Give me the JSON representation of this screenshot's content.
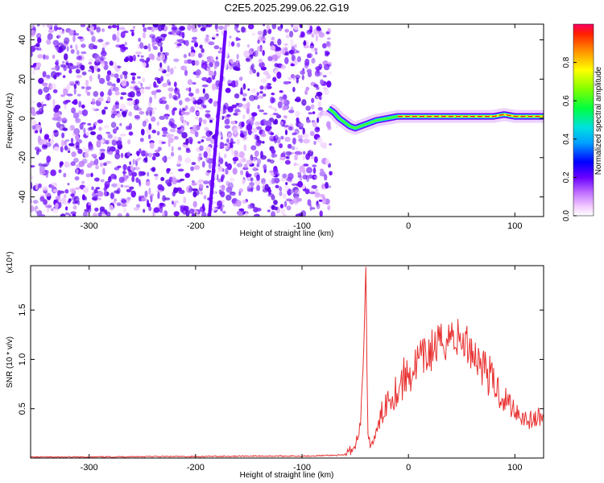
{
  "title": "C2E5.2025.299.06.22.G19",
  "colors": {
    "snr_line": "#e83030",
    "doppler_track": "#6a00ff",
    "background": "#ffffff"
  },
  "chart_data": [
    {
      "type": "heatmap",
      "xlabel": "Height of straight line (km)",
      "ylabel": "Frequency (Hz)",
      "xlim": [
        -355,
        127
      ],
      "ylim": [
        -50,
        48
      ],
      "xticks": [
        -300,
        -200,
        -100,
        0,
        100
      ],
      "yticks": [
        -40,
        -20,
        0,
        20,
        40
      ],
      "noise_region_x": [
        -355,
        -73
      ],
      "colorbar": {
        "label": "Normalized spectral amplitude",
        "range": [
          0,
          1
        ],
        "ticks": [
          "0.0",
          "0.2",
          "0.4",
          "0.6",
          "0.8"
        ]
      },
      "doppler_trace": {
        "x": [
          -75,
          -70,
          -65,
          -60,
          -55,
          -50,
          -45,
          -40,
          -35,
          -30,
          -20,
          -10,
          0,
          10,
          20,
          40,
          60,
          80,
          90,
          100,
          127
        ],
        "y": [
          5,
          3,
          0,
          -2,
          -4,
          -5,
          -4,
          -3,
          -2,
          -1,
          0,
          1,
          1,
          1,
          1,
          1,
          1,
          1,
          2,
          1,
          1
        ]
      }
    },
    {
      "type": "line",
      "xlabel": "Height of straight line (km)",
      "ylabel": "SNR (10 * v/v)",
      "y_multiplier": "(x10⁴)",
      "xlim": [
        -355,
        127
      ],
      "ylim": [
        0,
        1.95
      ],
      "xticks": [
        -300,
        -200,
        -100,
        0,
        100
      ],
      "yticks": [
        "0.5",
        "1.0",
        "1.5"
      ],
      "series": [
        {
          "x": [
            -355,
            -300,
            -250,
            -200,
            -150,
            -100,
            -60,
            -50,
            -45,
            -42,
            -40,
            -39,
            -38,
            -36,
            -34,
            -30,
            -25,
            -20,
            -15,
            -10,
            -5,
            0,
            5,
            10,
            15,
            20,
            25,
            30,
            35,
            40,
            45,
            50,
            55,
            60,
            65,
            70,
            75,
            80,
            85,
            90,
            95,
            100,
            105,
            110,
            115,
            120,
            127
          ],
          "y": [
            0.01,
            0.01,
            0.015,
            0.015,
            0.02,
            0.02,
            0.03,
            0.12,
            0.35,
            1.1,
            1.95,
            0.9,
            0.2,
            0.15,
            0.15,
            0.25,
            0.45,
            0.6,
            0.65,
            0.7,
            0.8,
            0.85,
            0.9,
            1.0,
            1.0,
            1.08,
            1.12,
            1.15,
            1.2,
            1.25,
            1.22,
            1.18,
            1.15,
            1.1,
            1.0,
            0.95,
            0.85,
            0.75,
            0.68,
            0.6,
            0.55,
            0.5,
            0.45,
            0.4,
            0.38,
            0.4,
            0.42
          ]
        }
      ]
    }
  ]
}
